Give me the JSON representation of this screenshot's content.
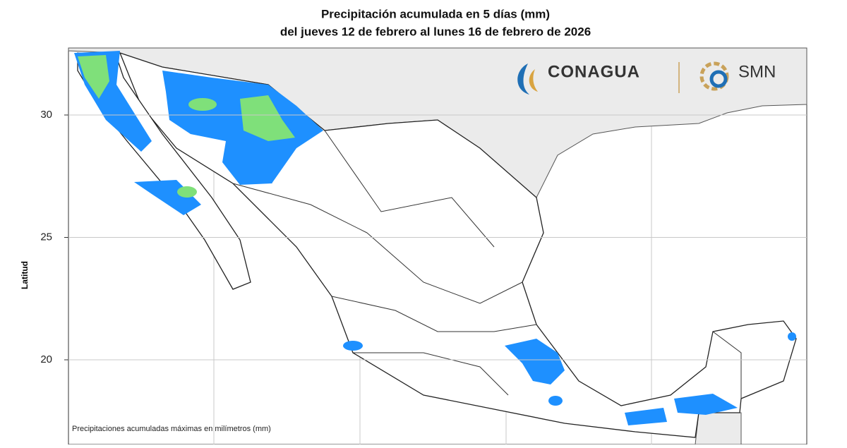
{
  "title": [
    "Precipitación acumulada en 5 días (mm)",
    "del jueves 12 de febrero al lunes 16 de febrero de 2026"
  ],
  "y_axis": {
    "label": "Latitud",
    "ticks": [
      30,
      25,
      20
    ]
  },
  "logos": {
    "conagua": "CONAGUA",
    "smn": "SMN"
  },
  "note": "Precipitaciones acumuladas máximas en milímetros (mm)"
}
